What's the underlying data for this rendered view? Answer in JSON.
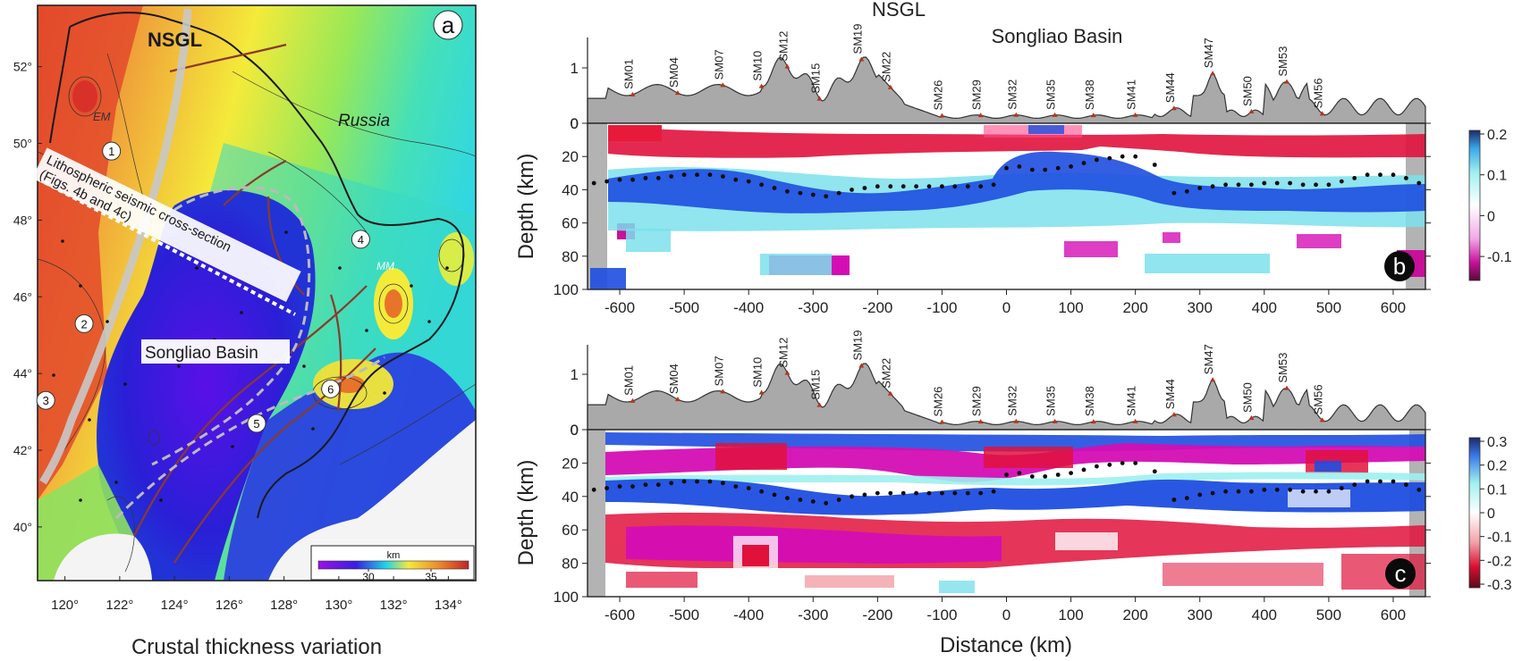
{
  "colors": {
    "map_blue": "#2a1fd6",
    "map_violet": "#5a10e8",
    "map_cyan": "#2fe0d8",
    "map_yellow": "#f4ea3a",
    "map_orange": "#f0a23a",
    "map_red": "#e2452a",
    "seis_red": "#e0123c",
    "seis_magenta": "#d40eb4",
    "seis_blue": "#1e4ee0",
    "seis_cyan": "#7ce0ec",
    "topo_fill": "#a9a9a9"
  },
  "chart_data": [
    {
      "type": "heatmap",
      "panel_label": "a",
      "xlabel": "Crustal thickness variation",
      "ylabel": "",
      "x_ticks": [
        "120°",
        "122°",
        "124°",
        "126°",
        "128°",
        "130°",
        "132°",
        "134°"
      ],
      "x_values": [
        120,
        122,
        124,
        126,
        128,
        130,
        132,
        134
      ],
      "xlim": [
        119,
        135
      ],
      "y_ticks": [
        "52°",
        "50°",
        "48°",
        "46°",
        "44°",
        "42°",
        "40°"
      ],
      "y_values": [
        52,
        50,
        48,
        46,
        44,
        42,
        40
      ],
      "ylim": [
        38.6,
        53.6
      ],
      "annotations": {
        "nsgl": "NSGL",
        "russia": "Russia",
        "songliao": "Songliao Basin",
        "em": "EM",
        "mm": "MM",
        "section_line1": "Lithospheric seismic cross-section",
        "section_line2": "(Figs. 4b and 4c)"
      },
      "circled_numbers": [
        {
          "label": "1",
          "lon": 121.7,
          "lat": 49.8
        },
        {
          "label": "2",
          "lon": 120.7,
          "lat": 45.3
        },
        {
          "label": "3",
          "lon": 119.3,
          "lat": 43.3
        },
        {
          "label": "4",
          "lon": 130.8,
          "lat": 47.5
        },
        {
          "label": "5",
          "lon": 127.0,
          "lat": 42.7
        },
        {
          "label": "6",
          "lon": 129.7,
          "lat": 43.6
        }
      ],
      "colorbar": {
        "title": "km",
        "tick_labels": [
          "30",
          "35"
        ],
        "tick_values": [
          30,
          35
        ],
        "range": [
          26,
          38
        ]
      }
    },
    {
      "type": "heatmap",
      "panel_label": "b",
      "title_top": "NSGL",
      "subtitle": "Songliao Basin",
      "xlabel": "",
      "ylabel": "Depth (km)",
      "xlim": [
        -650,
        650
      ],
      "ylim": [
        0,
        100
      ],
      "x_ticks": [
        "-600",
        "-500",
        "-400",
        "-300",
        "-200",
        "-100",
        "0",
        "100",
        "200",
        "300",
        "400",
        "500",
        "600"
      ],
      "x_values": [
        -600,
        -500,
        -400,
        -300,
        -200,
        -100,
        0,
        100,
        200,
        300,
        400,
        500,
        600
      ],
      "y_ticks": [
        "0",
        "20",
        "40",
        "60",
        "80",
        "100"
      ],
      "y_values": [
        0,
        20,
        40,
        60,
        80,
        100
      ],
      "topo_ticks": [
        "0",
        "1"
      ],
      "topo_values": [
        0,
        1
      ],
      "stations": [
        {
          "name": "SM01",
          "x": -580
        },
        {
          "name": "SM04",
          "x": -510
        },
        {
          "name": "SM07",
          "x": -440
        },
        {
          "name": "SM10",
          "x": -380
        },
        {
          "name": "SM12",
          "x": -340
        },
        {
          "name": "SM15",
          "x": -290
        },
        {
          "name": "SM19",
          "x": -225
        },
        {
          "name": "SM22",
          "x": -180
        },
        {
          "name": "SM26",
          "x": -100
        },
        {
          "name": "SM29",
          "x": -40
        },
        {
          "name": "SM32",
          "x": 15
        },
        {
          "name": "SM35",
          "x": 75
        },
        {
          "name": "SM38",
          "x": 135
        },
        {
          "name": "SM41",
          "x": 200
        },
        {
          "name": "SM44",
          "x": 260
        },
        {
          "name": "SM47",
          "x": 320
        },
        {
          "name": "SM50",
          "x": 380
        },
        {
          "name": "SM53",
          "x": 435
        },
        {
          "name": "SM56",
          "x": 490
        }
      ],
      "moho_depth_dots": [
        [
          -640,
          36
        ],
        [
          -620,
          35
        ],
        [
          -600,
          34
        ],
        [
          -580,
          34
        ],
        [
          -560,
          33
        ],
        [
          -540,
          33
        ],
        [
          -520,
          32
        ],
        [
          -500,
          31
        ],
        [
          -480,
          31
        ],
        [
          -460,
          31
        ],
        [
          -440,
          32
        ],
        [
          -420,
          34
        ],
        [
          -400,
          35
        ],
        [
          -380,
          37
        ],
        [
          -360,
          39
        ],
        [
          -340,
          41
        ],
        [
          -320,
          42
        ],
        [
          -300,
          43
        ],
        [
          -280,
          44
        ],
        [
          -260,
          42
        ],
        [
          -240,
          40
        ],
        [
          -220,
          39
        ],
        [
          -200,
          38
        ],
        [
          -180,
          38
        ],
        [
          -160,
          38
        ],
        [
          -140,
          38
        ],
        [
          -120,
          38
        ],
        [
          -100,
          38
        ],
        [
          -80,
          38
        ],
        [
          -60,
          38
        ],
        [
          -40,
          38
        ],
        [
          -20,
          37
        ],
        [
          0,
          27
        ],
        [
          20,
          26
        ],
        [
          40,
          28
        ],
        [
          60,
          28
        ],
        [
          80,
          27
        ],
        [
          100,
          26
        ],
        [
          120,
          24
        ],
        [
          140,
          22
        ],
        [
          160,
          21
        ],
        [
          180,
          20
        ],
        [
          200,
          20
        ],
        [
          230,
          25
        ],
        [
          260,
          42
        ],
        [
          280,
          41
        ],
        [
          300,
          39
        ],
        [
          320,
          38
        ],
        [
          340,
          37
        ],
        [
          360,
          37
        ],
        [
          380,
          37
        ],
        [
          400,
          36
        ],
        [
          420,
          36
        ],
        [
          440,
          36
        ],
        [
          460,
          37
        ],
        [
          480,
          37
        ],
        [
          500,
          37
        ],
        [
          520,
          35
        ],
        [
          540,
          33
        ],
        [
          560,
          31
        ],
        [
          580,
          31
        ],
        [
          600,
          31
        ],
        [
          620,
          33
        ],
        [
          640,
          36
        ]
      ],
      "colorbar": {
        "tick_labels": [
          "0.2",
          "0.1",
          "0",
          "-0.1"
        ],
        "tick_values": [
          0.2,
          0.1,
          0,
          -0.1
        ],
        "range": [
          -0.15,
          0.2
        ]
      }
    },
    {
      "type": "heatmap",
      "panel_label": "c",
      "xlabel": "Distance (km)",
      "ylabel": "Depth (km)",
      "xlim": [
        -650,
        650
      ],
      "ylim": [
        0,
        100
      ],
      "x_ticks": [
        "-600",
        "-500",
        "-400",
        "-300",
        "-200",
        "-100",
        "0",
        "100",
        "200",
        "300",
        "400",
        "500",
        "600"
      ],
      "x_values": [
        -600,
        -500,
        -400,
        -300,
        -200,
        -100,
        0,
        100,
        200,
        300,
        400,
        500,
        600
      ],
      "y_ticks": [
        "0",
        "20",
        "40",
        "60",
        "80",
        "100"
      ],
      "y_values": [
        0,
        20,
        40,
        60,
        80,
        100
      ],
      "topo_ticks": [
        "0",
        "1"
      ],
      "topo_values": [
        0,
        1
      ],
      "stations": [
        {
          "name": "SM01",
          "x": -580
        },
        {
          "name": "SM04",
          "x": -510
        },
        {
          "name": "SM07",
          "x": -440
        },
        {
          "name": "SM10",
          "x": -380
        },
        {
          "name": "SM12",
          "x": -340
        },
        {
          "name": "SM15",
          "x": -290
        },
        {
          "name": "SM19",
          "x": -225
        },
        {
          "name": "SM22",
          "x": -180
        },
        {
          "name": "SM26",
          "x": -100
        },
        {
          "name": "SM29",
          "x": -40
        },
        {
          "name": "SM32",
          "x": 15
        },
        {
          "name": "SM35",
          "x": 75
        },
        {
          "name": "SM38",
          "x": 135
        },
        {
          "name": "SM41",
          "x": 200
        },
        {
          "name": "SM44",
          "x": 260
        },
        {
          "name": "SM47",
          "x": 320
        },
        {
          "name": "SM50",
          "x": 380
        },
        {
          "name": "SM53",
          "x": 435
        },
        {
          "name": "SM56",
          "x": 490
        }
      ],
      "moho_depth_dots": [
        [
          -640,
          36
        ],
        [
          -620,
          35
        ],
        [
          -600,
          34
        ],
        [
          -580,
          34
        ],
        [
          -560,
          33
        ],
        [
          -540,
          33
        ],
        [
          -520,
          32
        ],
        [
          -500,
          31
        ],
        [
          -480,
          31
        ],
        [
          -460,
          31
        ],
        [
          -440,
          32
        ],
        [
          -420,
          34
        ],
        [
          -400,
          35
        ],
        [
          -380,
          37
        ],
        [
          -360,
          39
        ],
        [
          -340,
          41
        ],
        [
          -320,
          42
        ],
        [
          -300,
          43
        ],
        [
          -280,
          44
        ],
        [
          -260,
          42
        ],
        [
          -240,
          40
        ],
        [
          -220,
          39
        ],
        [
          -200,
          38
        ],
        [
          -180,
          38
        ],
        [
          -160,
          38
        ],
        [
          -140,
          38
        ],
        [
          -120,
          38
        ],
        [
          -100,
          38
        ],
        [
          -80,
          38
        ],
        [
          -60,
          38
        ],
        [
          -40,
          38
        ],
        [
          -20,
          37
        ],
        [
          0,
          27
        ],
        [
          20,
          26
        ],
        [
          40,
          28
        ],
        [
          60,
          28
        ],
        [
          80,
          27
        ],
        [
          100,
          26
        ],
        [
          120,
          24
        ],
        [
          140,
          22
        ],
        [
          160,
          21
        ],
        [
          180,
          20
        ],
        [
          200,
          20
        ],
        [
          230,
          25
        ],
        [
          260,
          42
        ],
        [
          280,
          41
        ],
        [
          300,
          39
        ],
        [
          320,
          38
        ],
        [
          340,
          37
        ],
        [
          360,
          37
        ],
        [
          380,
          37
        ],
        [
          400,
          36
        ],
        [
          420,
          36
        ],
        [
          440,
          36
        ],
        [
          460,
          37
        ],
        [
          480,
          37
        ],
        [
          500,
          37
        ],
        [
          520,
          35
        ],
        [
          540,
          33
        ],
        [
          560,
          31
        ],
        [
          580,
          31
        ],
        [
          600,
          31
        ],
        [
          620,
          33
        ],
        [
          640,
          36
        ]
      ],
      "colorbar": {
        "tick_labels": [
          "0.3",
          "0.2",
          "0.1",
          "0",
          "-0.1",
          "-0.2",
          "-0.3"
        ],
        "tick_values": [
          0.3,
          0.2,
          0.1,
          0,
          -0.1,
          -0.2,
          -0.3
        ],
        "range": [
          -0.3,
          0.3
        ]
      }
    }
  ]
}
